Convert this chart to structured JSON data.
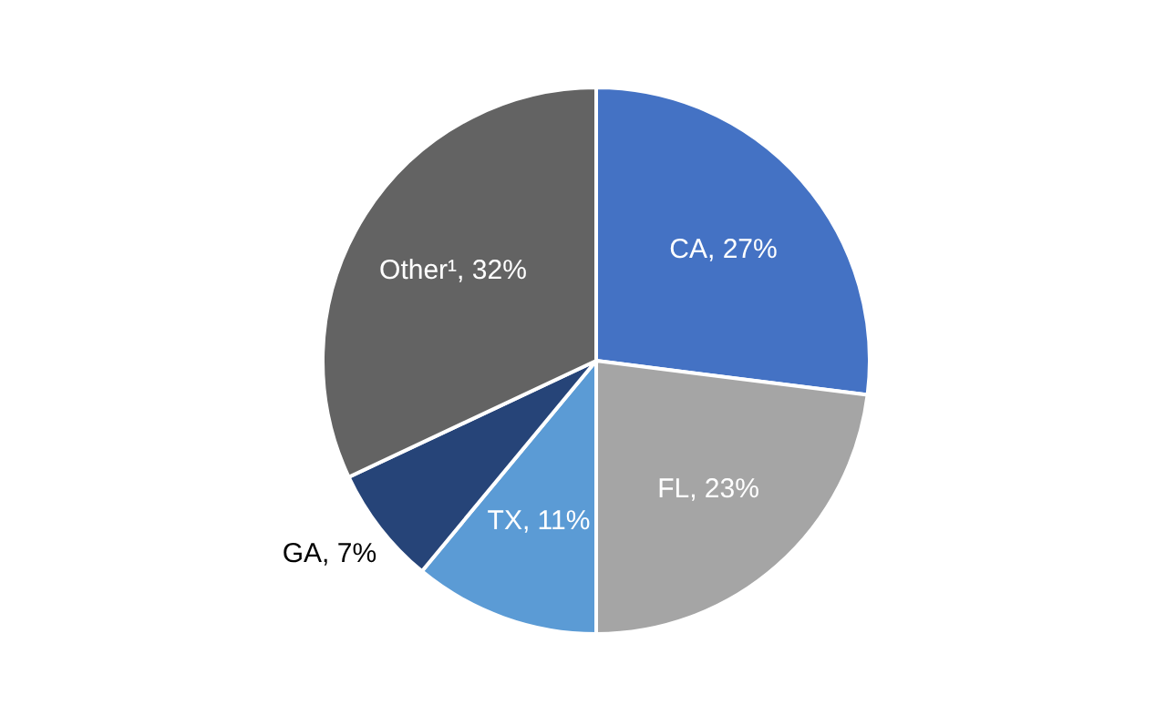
{
  "chart_data": {
    "type": "pie",
    "categories": [
      "CA",
      "FL",
      "TX",
      "GA",
      "Other¹"
    ],
    "values": [
      27,
      23,
      11,
      7,
      32
    ],
    "colors": [
      "#4472c4",
      "#a5a5a5",
      "#5b9bd5",
      "#264478",
      "#636363"
    ],
    "value_labels": [
      ", 27%",
      ", 23%",
      ", 11%",
      ", 7%",
      ", 32%"
    ],
    "legend": false
  }
}
